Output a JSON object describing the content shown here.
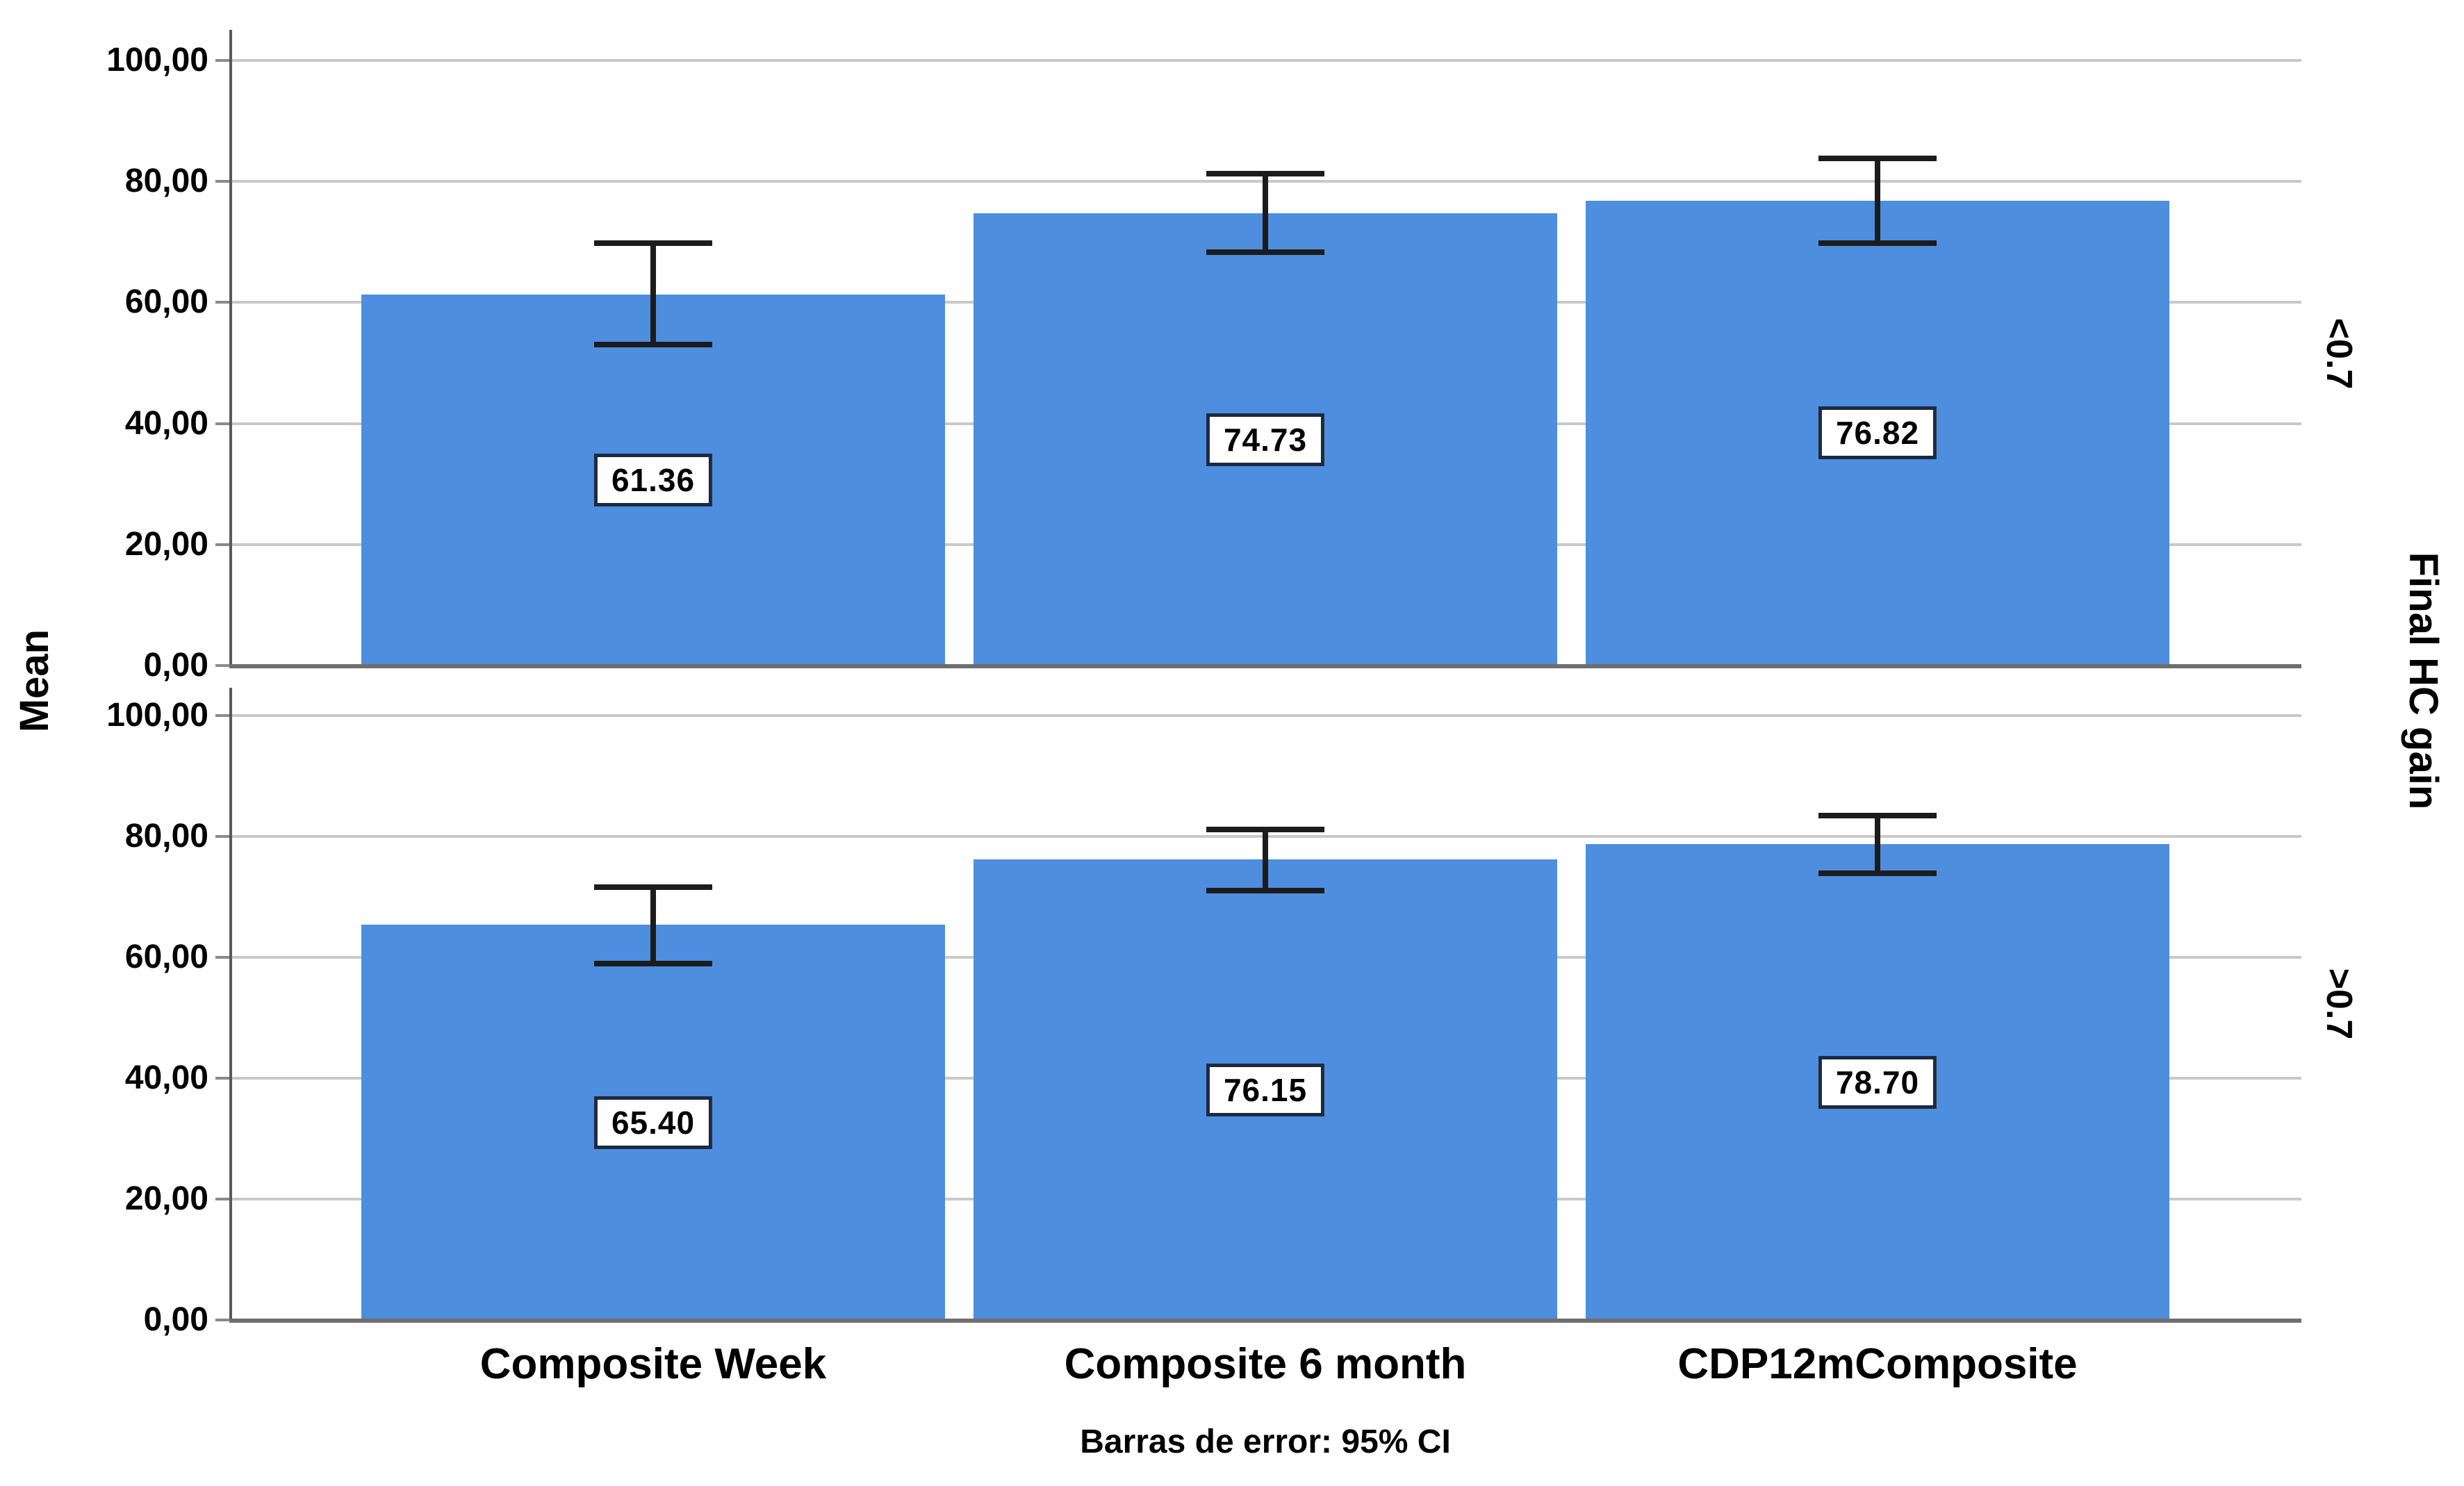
{
  "chart_data": {
    "type": "bar",
    "title": "",
    "ylabel": "Mean",
    "panel_axis_label": "Final HC gain",
    "footnote": "Barras de error: 95% CI",
    "categories": [
      "Composite Week",
      "Composite 6 month",
      "CDP12mComposite"
    ],
    "ylim": [
      0,
      100
    ],
    "ytick_values": [
      0,
      20,
      40,
      60,
      80,
      100
    ],
    "ytick_labels": [
      "0,00",
      "20,00",
      "40,00",
      "60,00",
      "80,00",
      "100,00"
    ],
    "grid": true,
    "bar_color": "#4d8ede",
    "error_bar_meaning": "95% CI",
    "panels": [
      {
        "label": "<0.7",
        "bars": [
          {
            "category": "Composite Week",
            "mean": 61.36,
            "value_label": "61.36",
            "ci_low": 52.6,
            "ci_high": 70.3
          },
          {
            "category": "Composite 6 month",
            "mean": 74.73,
            "value_label": "74.73",
            "ci_low": 67.8,
            "ci_high": 81.7
          },
          {
            "category": "CDP12mComposite",
            "mean": 76.82,
            "value_label": "76.82",
            "ci_low": 69.3,
            "ci_high": 84.3
          }
        ]
      },
      {
        "label": ">0.7",
        "bars": [
          {
            "category": "Composite Week",
            "mean": 65.4,
            "value_label": "65.40",
            "ci_low": 58.5,
            "ci_high": 72.1
          },
          {
            "category": "Composite 6 month",
            "mean": 76.15,
            "value_label": "76.15",
            "ci_low": 70.6,
            "ci_high": 81.6
          },
          {
            "category": "CDP12mComposite",
            "mean": 78.7,
            "value_label": "78.70",
            "ci_low": 73.5,
            "ci_high": 83.9
          }
        ]
      }
    ]
  }
}
